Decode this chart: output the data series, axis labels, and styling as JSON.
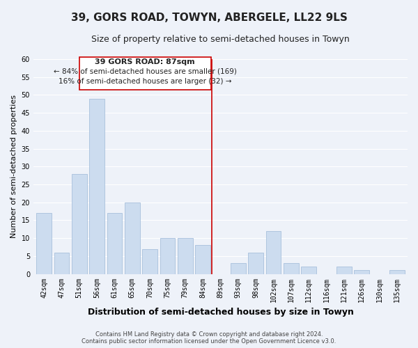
{
  "title": "39, GORS ROAD, TOWYN, ABERGELE, LL22 9LS",
  "subtitle": "Size of property relative to semi-detached houses in Towyn",
  "xlabel": "Distribution of semi-detached houses by size in Towyn",
  "ylabel": "Number of semi-detached properties",
  "footer_line1": "Contains HM Land Registry data © Crown copyright and database right 2024.",
  "footer_line2": "Contains public sector information licensed under the Open Government Licence v3.0.",
  "bar_labels": [
    "42sqm",
    "47sqm",
    "51sqm",
    "56sqm",
    "61sqm",
    "65sqm",
    "70sqm",
    "75sqm",
    "79sqm",
    "84sqm",
    "89sqm",
    "93sqm",
    "98sqm",
    "102sqm",
    "107sqm",
    "112sqm",
    "116sqm",
    "121sqm",
    "126sqm",
    "130sqm",
    "135sqm"
  ],
  "bar_values": [
    17,
    6,
    28,
    49,
    17,
    20,
    7,
    10,
    10,
    8,
    0,
    3,
    6,
    12,
    3,
    2,
    0,
    2,
    1,
    0,
    1
  ],
  "bar_color": "#ccdcef",
  "bar_edge_color": "#a8c0dc",
  "property_line_label": "39 GORS ROAD: 87sqm",
  "annotation_line1": "← 84% of semi-detached houses are smaller (169)",
  "annotation_line2": "16% of semi-detached houses are larger (32) →",
  "box_edge_color": "#cc0000",
  "vline_color": "#cc0000",
  "ylim": [
    0,
    60
  ],
  "yticks": [
    0,
    5,
    10,
    15,
    20,
    25,
    30,
    35,
    40,
    45,
    50,
    55,
    60
  ],
  "background_color": "#eef2f9",
  "grid_color": "#ffffff",
  "title_fontsize": 11,
  "subtitle_fontsize": 9,
  "xlabel_fontsize": 9,
  "ylabel_fontsize": 8,
  "tick_fontsize": 7,
  "annotation_fontsize": 8,
  "footer_fontsize": 6
}
